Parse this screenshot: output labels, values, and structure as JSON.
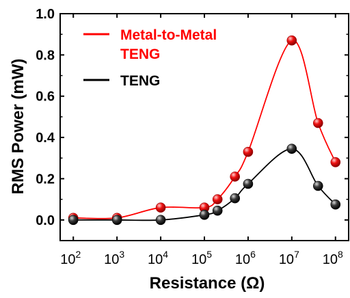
{
  "chart_data": {
    "type": "line",
    "title": "",
    "xlabel": "Resistance (Ω)",
    "ylabel": "RMS Power (mW)",
    "x_scale": "log",
    "xlim": [
      50,
      200000000
    ],
    "ylim": [
      -0.1,
      1.0
    ],
    "x_ticks": [
      {
        "value": 100,
        "base": "10",
        "exp": "2"
      },
      {
        "value": 1000,
        "base": "10",
        "exp": "3"
      },
      {
        "value": 10000,
        "base": "10",
        "exp": "4"
      },
      {
        "value": 100000,
        "base": "10",
        "exp": "5"
      },
      {
        "value": 1000000,
        "base": "10",
        "exp": "6"
      },
      {
        "value": 10000000,
        "base": "10",
        "exp": "7"
      },
      {
        "value": 100000000,
        "base": "10",
        "exp": "8"
      }
    ],
    "y_ticks": [
      "0.0",
      "0.2",
      "0.4",
      "0.6",
      "0.8",
      "1.0"
    ],
    "grid": false,
    "legend_position": "top-left",
    "series": [
      {
        "name": "Metal-to-Metal TENG",
        "legend_lines": [
          "Metal-to-Metal",
          "TENG"
        ],
        "color": "#ff0000",
        "x": [
          100,
          1000,
          10000,
          100000,
          200000,
          500000,
          1000000,
          10000000,
          40000000,
          100000000
        ],
        "y": [
          0.01,
          0.01,
          0.06,
          0.06,
          0.1,
          0.21,
          0.33,
          0.87,
          0.47,
          0.28
        ]
      },
      {
        "name": "TENG",
        "legend_lines": [
          "TENG"
        ],
        "color": "#000000",
        "x": [
          100,
          1000,
          10000,
          100000,
          200000,
          500000,
          1000000,
          10000000,
          40000000,
          100000000
        ],
        "y": [
          0.0,
          0.0,
          0.0,
          0.025,
          0.045,
          0.105,
          0.175,
          0.345,
          0.165,
          0.075
        ]
      }
    ]
  }
}
